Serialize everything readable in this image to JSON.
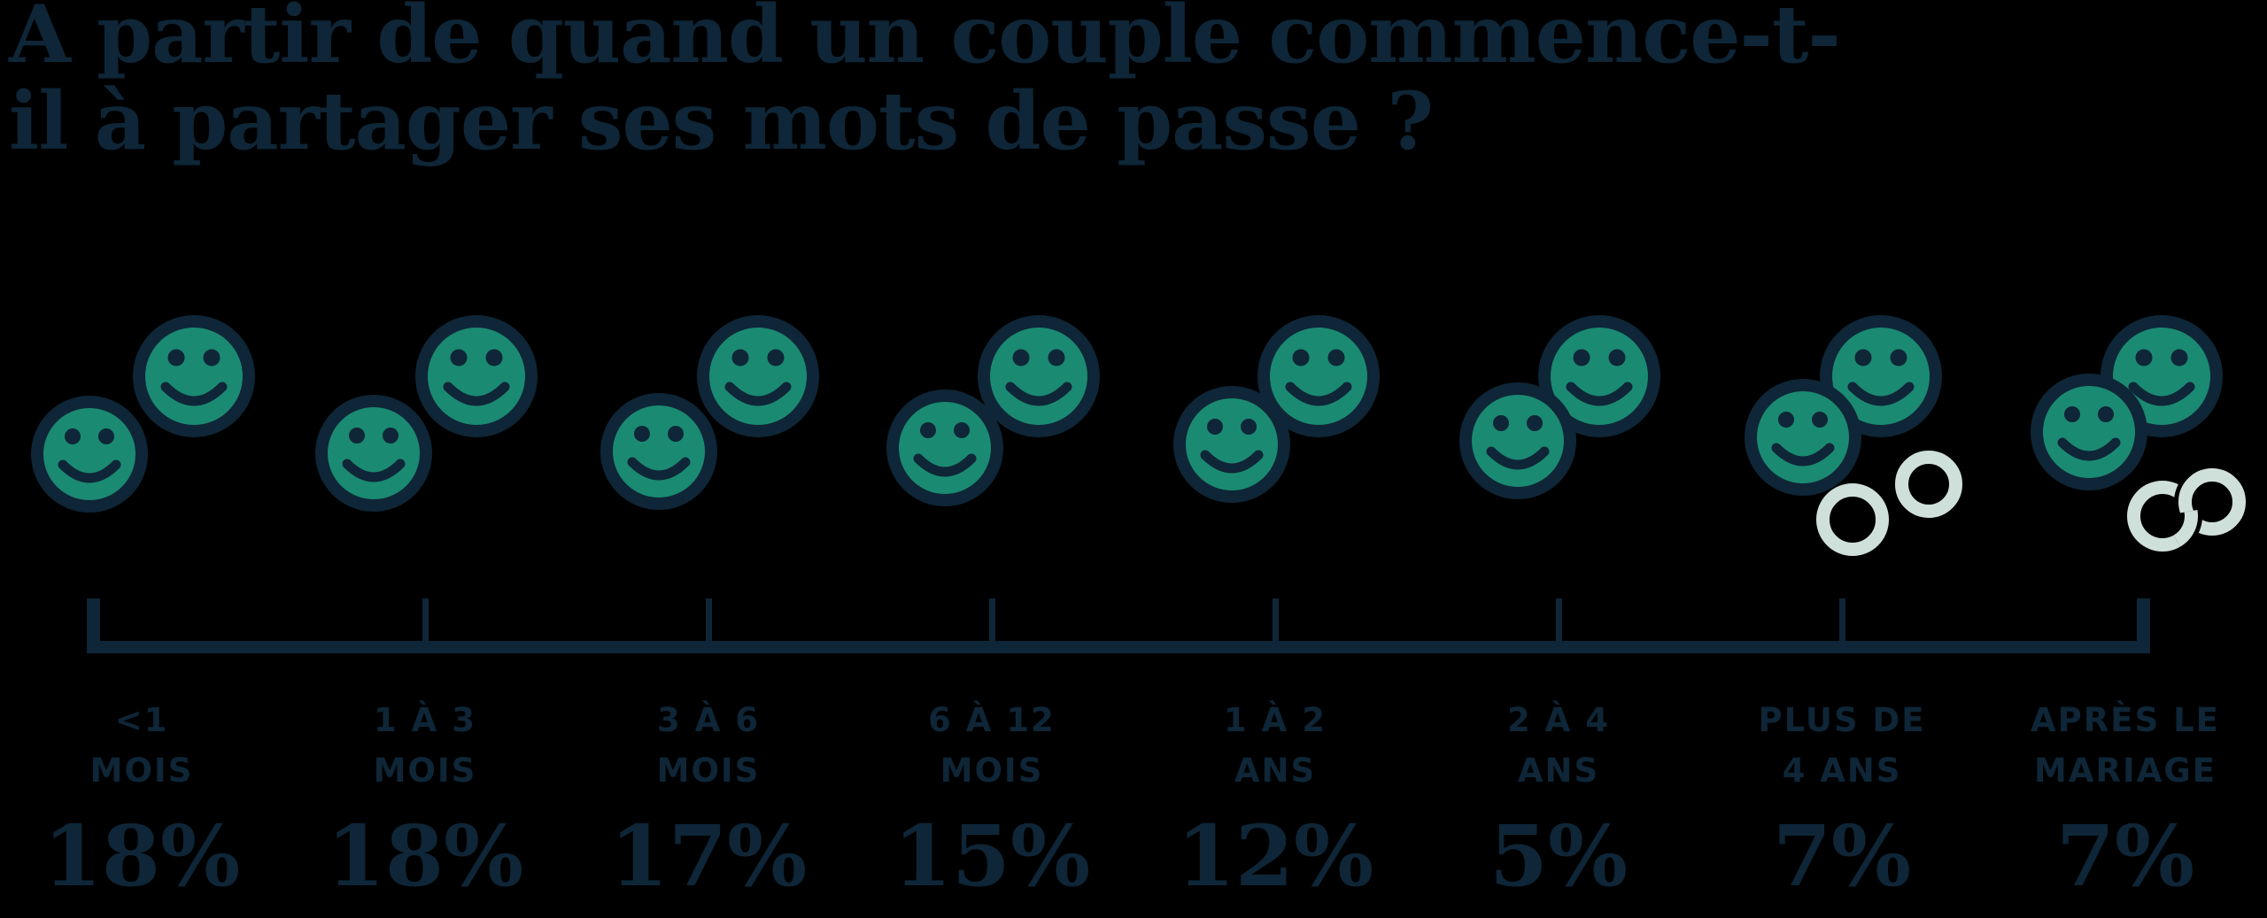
{
  "title": {
    "line1": "À partir de quand un couple commence-t-",
    "line2": "il à partager ses mots de passe ?"
  },
  "colors": {
    "background": "#000000",
    "navy": "#0e2637",
    "green": "#1b8a72",
    "ring": "#cfe0db"
  },
  "categories": [
    {
      "label_line1": "<1",
      "label_line2": "MOIS",
      "value": "18%",
      "icon": "smiley-pair",
      "rings": "none"
    },
    {
      "label_line1": "1 À 3",
      "label_line2": "MOIS",
      "value": "18%",
      "icon": "smiley-pair",
      "rings": "none"
    },
    {
      "label_line1": "3 À 6",
      "label_line2": "MOIS",
      "value": "17%",
      "icon": "smiley-pair",
      "rings": "none"
    },
    {
      "label_line1": "6 À 12",
      "label_line2": "MOIS",
      "value": "15%",
      "icon": "smiley-pair",
      "rings": "none"
    },
    {
      "label_line1": "1 À 2",
      "label_line2": "ANS",
      "value": "12%",
      "icon": "smiley-pair",
      "rings": "none"
    },
    {
      "label_line1": "2 À 4",
      "label_line2": "ANS",
      "value": "5%",
      "icon": "smiley-pair",
      "rings": "none"
    },
    {
      "label_line1": "PLUS DE",
      "label_line2": "4 ANS",
      "value": "7%",
      "icon": "smiley-pair-rings",
      "rings": "separate"
    },
    {
      "label_line1": "APRÈS LE",
      "label_line2": "MARIAGE",
      "value": "7%",
      "icon": "smiley-pair-rings",
      "rings": "interlocked"
    }
  ],
  "chart_data": {
    "type": "bar",
    "title": "À partir de quand un couple commence-t-il à partager ses mots de passe ?",
    "categories": [
      "<1 mois",
      "1 à 3 mois",
      "3 à 6 mois",
      "6 à 12 mois",
      "1 à 2 ans",
      "2 à 4 ans",
      "Plus de 4 ans",
      "Après le mariage"
    ],
    "values": [
      18,
      18,
      17,
      15,
      12,
      5,
      7,
      7
    ],
    "unit": "%",
    "xlabel": "",
    "ylabel": "",
    "legend": "none",
    "grid": "off",
    "note": "pictogram chart: smiley couples move closer together over time; wedding rings appear for the last two categories"
  }
}
